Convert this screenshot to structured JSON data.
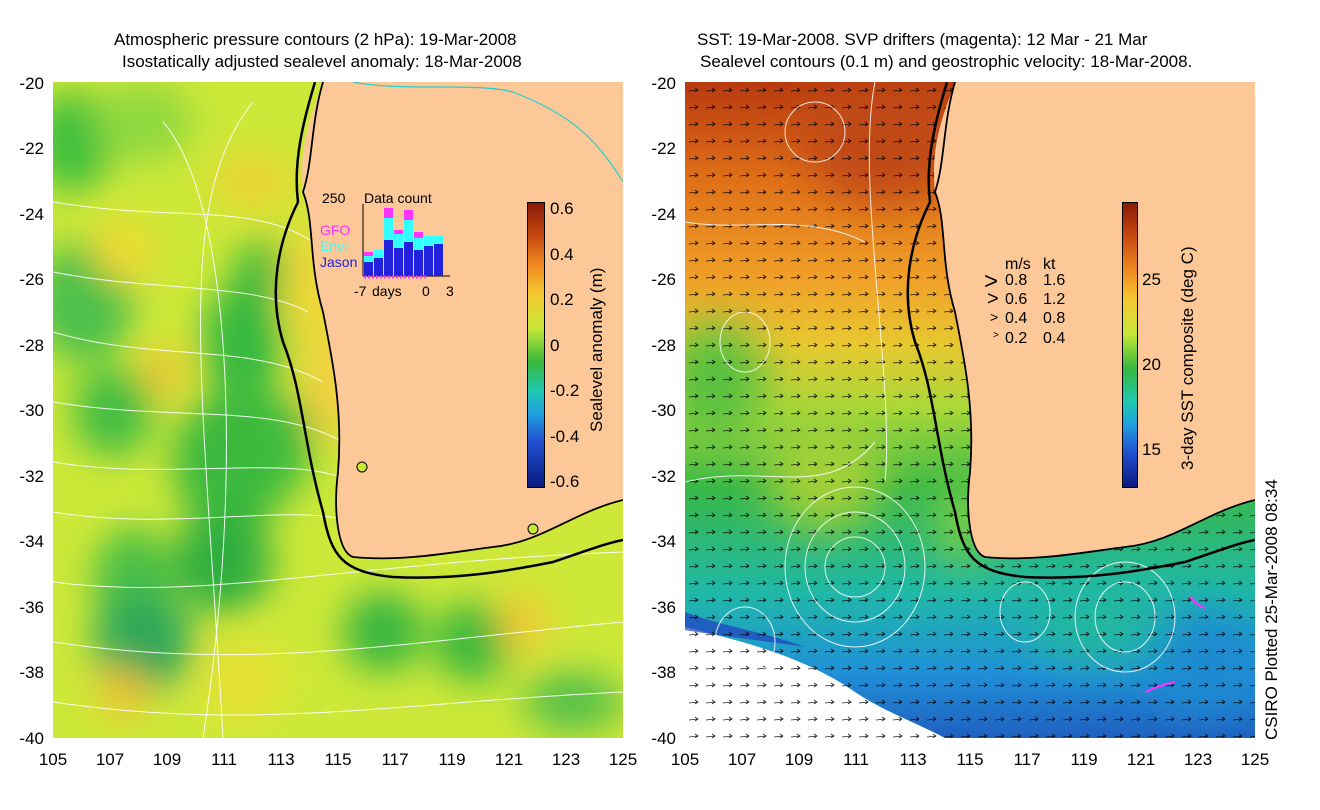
{
  "left_panel": {
    "title_line1": "Atmospheric pressure contours (2 hPa): 19-Mar-2008",
    "title_line2": "Isostatically adjusted sealevel anomaly: 18-Mar-2008",
    "colorbar": {
      "label": "Sealevel anomaly (m)",
      "ticks": [
        "0.6",
        "0.4",
        "0.2",
        "0",
        "-0.2",
        "-0.4",
        "-0.6"
      ],
      "range": [
        -0.6,
        0.6
      ]
    },
    "inset": {
      "title": "Data count",
      "y_max_label": "250",
      "legend": [
        "GFO",
        "Envi",
        "Jason"
      ],
      "legend_colors": [
        "#ff33ff",
        "#33ffff",
        "#2222dd"
      ],
      "x_labels": [
        "-7",
        "days",
        "0",
        "3"
      ]
    },
    "stations": [
      {
        "lon": 115.9,
        "lat": -31.8
      },
      {
        "lon": 122.0,
        "lat": -33.7
      }
    ]
  },
  "right_panel": {
    "title_line1": "SST: 19-Mar-2008. SVP drifters (magenta): 12 Mar - 21 Mar",
    "title_line2": "Sealevel contours (0.1 m) and geostrophic velocity: 18-Mar-2008.",
    "colorbar": {
      "label": "3-day SST composite (deg C)",
      "ticks": [
        "25",
        "20",
        "15"
      ]
    },
    "velocity_key": {
      "header_ms": "m/s",
      "header_kt": "kt",
      "rows": [
        {
          "ms": "0.8",
          "kt": "1.6"
        },
        {
          "ms": "0.6",
          "kt": "1.2"
        },
        {
          "ms": "0.4",
          "kt": "0.8"
        },
        {
          "ms": "0.2",
          "kt": "0.4"
        }
      ]
    }
  },
  "axes": {
    "lat_ticks": [
      "-20",
      "-22",
      "-24",
      "-26",
      "-28",
      "-30",
      "-32",
      "-34",
      "-36",
      "-38",
      "-40"
    ],
    "lon_ticks": [
      "105",
      "107",
      "109",
      "111",
      "113",
      "115",
      "117",
      "119",
      "121",
      "123",
      "125"
    ],
    "lon_range": [
      105,
      125
    ],
    "lat_range": [
      -40,
      -20
    ]
  },
  "credit": "CSIRO Plotted 25-Mar-2008 08:34",
  "colors": {
    "land": "#fdc898",
    "coast": "#000000",
    "contour": "#ffffff",
    "drifter": "#ff33ff"
  }
}
